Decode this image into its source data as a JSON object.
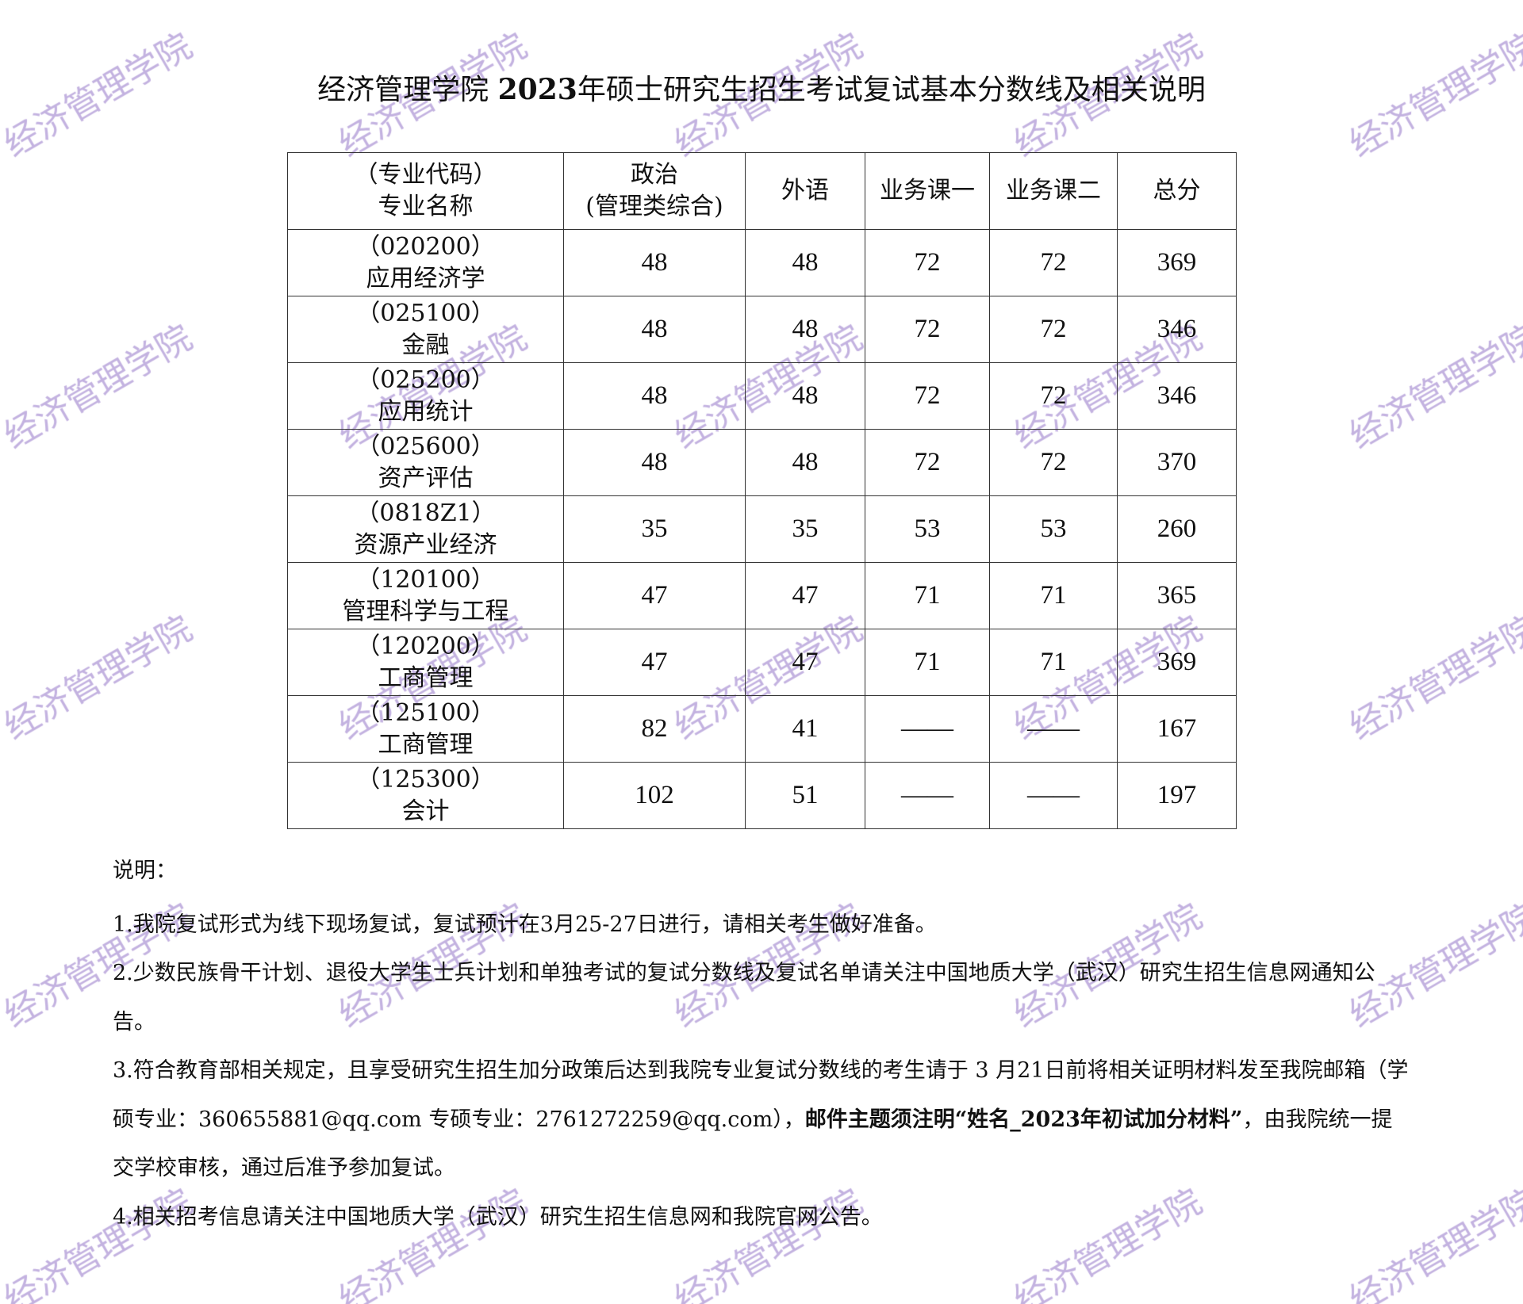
{
  "title_pre": "经济管理学院 ",
  "title_bold": "2023",
  "title_post": "年硕士研究生招生考试复试基本分数线及相关说明",
  "table": {
    "headers": [
      [
        "（专业代码）",
        "专业名称"
      ],
      [
        "政治",
        "(管理类综合)"
      ],
      [
        "外语"
      ],
      [
        "业务课一"
      ],
      [
        "业务课二"
      ],
      [
        "总分"
      ]
    ],
    "rows": [
      {
        "code": "（020200）",
        "name": "应用经济学",
        "politics": "48",
        "language": "48",
        "course1": "72",
        "course2": "72",
        "total": "369"
      },
      {
        "code": "（025100）",
        "name": "金融",
        "politics": "48",
        "language": "48",
        "course1": "72",
        "course2": "72",
        "total": "346"
      },
      {
        "code": "（025200）",
        "name": "应用统计",
        "politics": "48",
        "language": "48",
        "course1": "72",
        "course2": "72",
        "total": "346"
      },
      {
        "code": "（025600）",
        "name": "资产评估",
        "politics": "48",
        "language": "48",
        "course1": "72",
        "course2": "72",
        "total": "370"
      },
      {
        "code": "（0818Z1）",
        "name": "资源产业经济",
        "politics": "35",
        "language": "35",
        "course1": "53",
        "course2": "53",
        "total": "260"
      },
      {
        "code": "（120100）",
        "name": "管理科学与工程",
        "politics": "47",
        "language": "47",
        "course1": "71",
        "course2": "71",
        "total": "365"
      },
      {
        "code": "（120200）",
        "name": "工商管理",
        "politics": "47",
        "language": "47",
        "course1": "71",
        "course2": "71",
        "total": "369"
      },
      {
        "code": "（125100）",
        "name": "工商管理",
        "politics": "82",
        "language": "41",
        "course1": "——",
        "course2": "——",
        "total": "167"
      },
      {
        "code": "（125300）",
        "name": "会计",
        "politics": "102",
        "language": "51",
        "course1": "——",
        "course2": "——",
        "total": "197"
      }
    ]
  },
  "notes": {
    "heading": "说明：",
    "item1": "1.我院复试形式为线下现场复试，复试预计在3月25-27日进行，请相关考生做好准备。",
    "item2": "2.少数民族骨干计划、退役大学生士兵计划和单独考试的复试分数线及复试名单请关注中国地质大学（武汉）研究生招生信息网通知公告。",
    "item3_a": "3.符合教育部相关规定，且享受研究生招生加分政策后达到我院专业复试分数线的考生请于 3 月21日前将相关证明材料发至我院邮箱（学硕专业：360655881@qq.com 专硕专业：2761272259@qq.com），",
    "item3_bold": "邮件主题须注明“姓名_2023年初试加分材料”",
    "item3_b": "，由我院统一提交学校审核，通过后准予参加复试。",
    "item4": "4.相关招考信息请关注中国地质大学（武汉）研究生招生信息网和我院官网公告。"
  },
  "watermark_text": "经济管理学院",
  "watermark_color": "#b49fd8"
}
